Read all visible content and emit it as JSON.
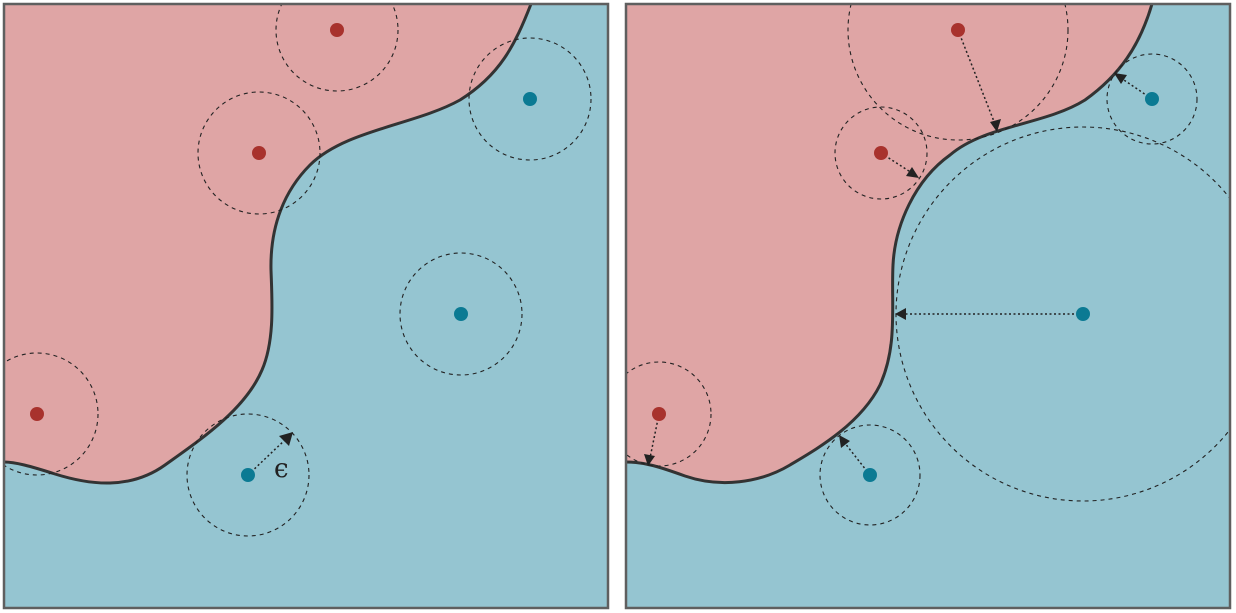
{
  "colors": {
    "red_region": "#dfa5a5",
    "blue_region": "#95c5d1",
    "red_point": "#a8322d",
    "blue_point": "#0b7a93",
    "frame": "#5f5f5f",
    "boundary": "#333333"
  },
  "left_panel": {
    "epsilon_label": "ϵ"
  }
}
